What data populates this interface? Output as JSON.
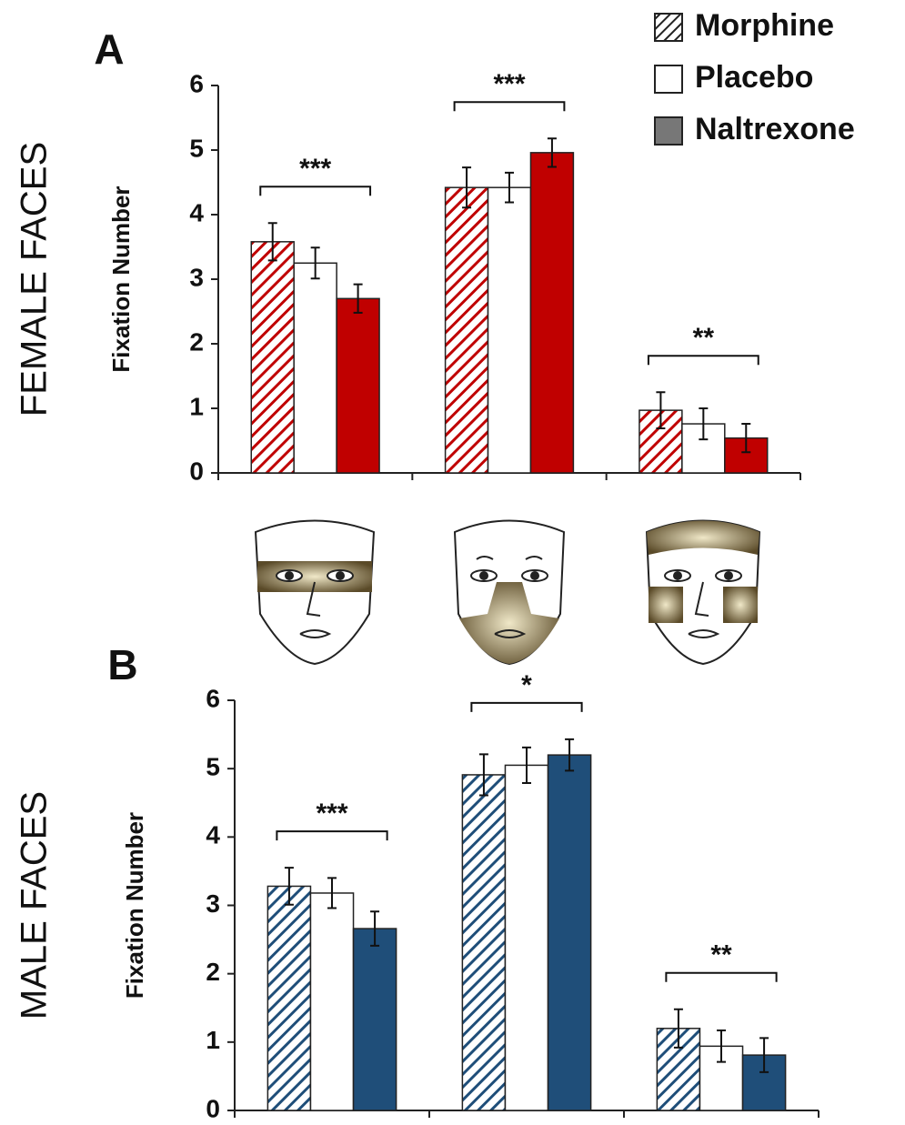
{
  "chart_data": [
    {
      "type": "bar",
      "panel": "A",
      "row_label": "FEMALE FACES",
      "y_label": "Fixation Number",
      "categories": [
        null,
        null,
        null
      ],
      "series": [
        {
          "name": "Morphine",
          "color": "#c00000",
          "hatch": true,
          "values": [
            3.58,
            4.42,
            0.97
          ],
          "errors": [
            0.29,
            0.31,
            0.28
          ]
        },
        {
          "name": "Placebo",
          "color": "#ffffff",
          "values": [
            3.25,
            4.42,
            0.76
          ],
          "errors": [
            0.24,
            0.23,
            0.24
          ]
        },
        {
          "name": "Naltrexone",
          "color": "#c00000",
          "values": [
            2.7,
            4.96,
            0.54
          ],
          "errors": [
            0.22,
            0.22,
            0.22
          ]
        }
      ],
      "annotations": [
        "***",
        "***",
        "**"
      ],
      "ylim": [
        0,
        6
      ],
      "yticks": [
        0,
        1,
        2,
        3,
        4,
        5,
        6
      ],
      "legend": "top-right"
    },
    {
      "type": "bar",
      "panel": "B",
      "row_label": "MALE FACES",
      "y_label": "Fixation Number",
      "categories": [
        null,
        null,
        null
      ],
      "series": [
        {
          "color": "#1f4e79",
          "hatch": true,
          "values": [
            3.28,
            4.91,
            1.2
          ],
          "errors": [
            0.27,
            0.3,
            0.28
          ]
        },
        {
          "color": "#ffffff",
          "values": [
            3.18,
            5.05,
            0.94
          ],
          "errors": [
            0.22,
            0.26,
            0.23
          ]
        },
        {
          "color": "#1f4e79",
          "values": [
            2.66,
            5.2,
            0.81
          ],
          "errors": [
            0.25,
            0.23,
            0.25
          ]
        }
      ],
      "annotations": [
        "***",
        "*",
        "**"
      ],
      "ylim": [
        0,
        6
      ],
      "yticks": [
        0,
        1,
        2,
        3,
        4,
        5,
        6
      ]
    }
  ]
}
